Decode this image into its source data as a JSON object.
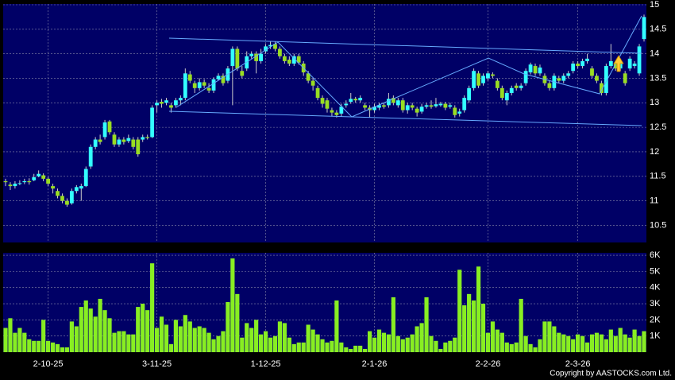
{
  "chart_data": [
    {
      "type": "candlestick",
      "up_color": "#33ffff",
      "down_color": "#99dd22",
      "grid": true,
      "ylim": [
        10.15,
        15
      ],
      "yticks": [
        10.5,
        11,
        11.5,
        12,
        12.5,
        13,
        13.5,
        14,
        14.5,
        15
      ],
      "categories": [
        null,
        null,
        null,
        null,
        null,
        null,
        null,
        null,
        null,
        "2-10-25",
        null,
        null,
        null,
        null,
        null,
        null,
        null,
        null,
        null,
        null,
        null,
        null,
        null,
        null,
        null,
        null,
        null,
        null,
        null,
        null,
        null,
        null,
        "3-11-25",
        null,
        null,
        null,
        null,
        null,
        null,
        null,
        null,
        null,
        null,
        null,
        null,
        null,
        null,
        null,
        null,
        null,
        null,
        null,
        null,
        null,
        null,
        "1-12-25",
        null,
        null,
        null,
        null,
        null,
        null,
        null,
        null,
        null,
        null,
        null,
        null,
        null,
        null,
        null,
        null,
        null,
        null,
        null,
        null,
        null,
        null,
        "2-1-26",
        null,
        null,
        null,
        null,
        null,
        null,
        null,
        null,
        null,
        null,
        null,
        null,
        null,
        null,
        null,
        null,
        null,
        null,
        null,
        null,
        null,
        null,
        null,
        "2-2-26",
        null,
        null,
        null,
        null,
        null,
        null,
        null,
        null,
        null,
        null,
        null,
        null,
        null,
        null,
        null,
        null,
        null,
        null,
        "2-3-26",
        null,
        null,
        null,
        null,
        null,
        null,
        null,
        null,
        null,
        null,
        null,
        null,
        null,
        null
      ],
      "open": [
        11.4,
        11.33,
        11.3,
        11.35,
        11.38,
        11.4,
        11.42,
        11.5,
        11.52,
        11.45,
        11.3,
        11.2,
        11.1,
        11.0,
        10.95,
        11.2,
        11.25,
        11.3,
        11.7,
        12.1,
        12.25,
        12.3,
        12.62,
        12.35,
        12.15,
        12.25,
        12.22,
        12.25,
        12.25,
        12.25,
        12.3,
        12.3,
        12.95,
        13.02,
        13.0,
        12.95,
        12.95,
        13.05,
        13.1,
        13.58,
        13.4,
        13.3,
        13.42,
        13.3,
        13.25,
        13.48,
        13.55,
        13.45,
        13.75,
        14.1,
        13.65,
        13.7,
        13.95,
        14.0,
        13.85,
        14.05,
        14.15,
        14.2,
        14.1,
        13.95,
        13.88,
        13.8,
        13.95,
        13.8,
        13.6,
        13.45,
        13.3,
        13.1,
        13.05,
        12.85,
        12.8,
        12.78,
        12.95,
        13.02,
        13.08,
        13.05,
        12.95,
        12.9,
        12.85,
        12.9,
        12.95,
        12.95,
        13.1,
        12.95,
        13.05,
        12.85,
        12.95,
        12.88,
        12.82,
        12.92,
        12.95,
        12.93,
        12.95,
        12.98,
        12.92,
        12.9,
        12.78,
        12.85,
        13.05,
        13.3,
        13.6,
        13.4,
        13.5,
        13.58,
        13.45,
        13.3,
        13.05,
        13.2,
        13.35,
        13.3,
        13.4,
        13.62,
        13.75,
        13.6,
        13.55,
        13.4,
        13.3,
        13.5,
        13.45,
        13.55,
        13.65,
        13.8,
        13.75,
        13.85,
        13.7,
        13.55,
        13.4,
        13.2,
        13.75,
        13.8,
        13.7,
        13.6,
        13.7,
        13.75,
        13.6,
        14.3
      ],
      "high": [
        11.45,
        11.38,
        11.4,
        11.42,
        11.45,
        11.46,
        11.55,
        11.62,
        11.56,
        11.48,
        11.35,
        11.25,
        11.15,
        11.05,
        11.25,
        11.32,
        11.35,
        11.7,
        12.15,
        12.3,
        12.35,
        12.65,
        12.65,
        12.4,
        12.3,
        12.3,
        12.35,
        12.3,
        12.3,
        12.35,
        12.35,
        12.95,
        13.05,
        13.08,
        13.1,
        13.0,
        13.1,
        13.15,
        13.7,
        13.65,
        13.45,
        13.5,
        13.48,
        13.4,
        13.52,
        13.6,
        13.6,
        13.75,
        14.15,
        14.15,
        13.75,
        14.05,
        14.05,
        14.05,
        14.1,
        14.2,
        14.25,
        14.25,
        14.15,
        14.0,
        13.95,
        14.0,
        14.0,
        13.85,
        13.65,
        13.5,
        13.35,
        13.15,
        13.1,
        12.9,
        12.85,
        12.98,
        13.05,
        13.2,
        13.12,
        13.15,
        13.0,
        12.95,
        12.98,
        13.0,
        13.0,
        13.2,
        13.15,
        13.1,
        13.1,
        13.0,
        13.0,
        12.92,
        12.98,
        13.0,
        13.05,
        13.1,
        13.02,
        13.02,
        13.0,
        12.95,
        12.88,
        13.15,
        13.35,
        13.7,
        13.65,
        13.6,
        13.65,
        13.62,
        13.5,
        13.35,
        13.25,
        13.35,
        13.4,
        13.4,
        13.7,
        13.82,
        13.8,
        13.78,
        13.6,
        13.45,
        13.6,
        13.55,
        13.6,
        13.65,
        13.85,
        13.85,
        13.9,
        14.0,
        13.75,
        13.6,
        13.45,
        13.8,
        14.2,
        13.85,
        13.9,
        13.65,
        13.95,
        13.85,
        14.2,
        14.8
      ],
      "low": [
        11.3,
        11.22,
        11.25,
        11.32,
        11.34,
        11.33,
        11.4,
        11.48,
        11.4,
        11.3,
        11.15,
        11.05,
        10.95,
        10.88,
        10.92,
        11.15,
        11.0,
        11.28,
        11.65,
        12.05,
        12.15,
        12.25,
        12.35,
        12.1,
        12.1,
        12.15,
        12.18,
        12.05,
        11.9,
        12.2,
        12.25,
        12.28,
        12.8,
        12.9,
        12.95,
        12.8,
        12.9,
        12.95,
        13.05,
        13.4,
        13.2,
        13.25,
        13.3,
        13.2,
        13.2,
        13.45,
        13.35,
        13.4,
        12.95,
        13.65,
        13.5,
        13.65,
        13.9,
        13.6,
        13.8,
        14.0,
        14.1,
        14.05,
        13.9,
        13.8,
        13.75,
        13.75,
        13.78,
        13.55,
        13.4,
        13.25,
        13.05,
        12.9,
        12.8,
        12.72,
        12.7,
        12.72,
        12.9,
        12.98,
        13.0,
        13.0,
        12.85,
        12.7,
        12.8,
        12.85,
        12.88,
        12.9,
        12.95,
        12.9,
        12.8,
        12.78,
        12.85,
        12.72,
        12.78,
        12.88,
        12.88,
        12.9,
        12.92,
        12.85,
        12.88,
        12.7,
        12.72,
        12.8,
        13.0,
        13.25,
        13.3,
        13.35,
        13.45,
        13.5,
        13.25,
        13.05,
        12.95,
        13.15,
        13.25,
        13.25,
        13.35,
        13.58,
        13.55,
        13.55,
        13.35,
        13.25,
        13.25,
        13.4,
        13.4,
        13.5,
        13.6,
        13.7,
        13.7,
        13.8,
        13.5,
        13.4,
        13.15,
        13.15,
        13.7,
        13.65,
        13.65,
        13.35,
        13.65,
        13.7,
        13.55,
        14.25
      ],
      "close": [
        11.38,
        11.3,
        11.35,
        11.36,
        11.4,
        11.38,
        11.48,
        11.55,
        11.45,
        11.35,
        11.25,
        11.1,
        11.0,
        10.92,
        11.2,
        11.28,
        11.3,
        11.65,
        12.1,
        12.25,
        12.2,
        12.6,
        12.4,
        12.15,
        12.25,
        12.2,
        12.28,
        12.1,
        11.95,
        12.3,
        12.28,
        12.9,
        13.0,
        12.98,
        13.05,
        12.9,
        13.05,
        13.1,
        13.6,
        13.45,
        13.3,
        13.42,
        13.35,
        13.25,
        13.48,
        13.55,
        13.4,
        13.7,
        14.1,
        13.7,
        13.55,
        13.95,
        14.0,
        13.85,
        14.0,
        14.15,
        14.18,
        14.1,
        13.95,
        13.85,
        13.8,
        13.95,
        13.82,
        13.62,
        13.45,
        13.35,
        13.1,
        12.98,
        12.88,
        12.8,
        12.75,
        12.92,
        12.98,
        13.08,
        13.05,
        13.1,
        12.9,
        12.85,
        12.92,
        12.95,
        12.92,
        13.08,
        13.0,
        13.05,
        12.85,
        12.95,
        12.9,
        12.8,
        12.92,
        12.95,
        12.92,
        12.97,
        12.98,
        12.9,
        12.95,
        12.75,
        12.82,
        13.1,
        13.3,
        13.65,
        13.35,
        13.55,
        13.6,
        13.55,
        13.3,
        13.1,
        13.2,
        13.3,
        13.3,
        13.35,
        13.65,
        13.78,
        13.6,
        13.72,
        13.4,
        13.3,
        13.55,
        13.45,
        13.55,
        13.6,
        13.8,
        13.75,
        13.85,
        13.9,
        13.55,
        13.45,
        13.2,
        13.75,
        13.85,
        13.7,
        13.85,
        13.4,
        13.9,
        13.8,
        14.15,
        14.75
      ]
    },
    {
      "type": "bar",
      "color": "#88ee22",
      "grid": true,
      "ylim": [
        0,
        6150
      ],
      "yticks": [
        {
          "value": 1000,
          "label": "1K"
        },
        {
          "value": 2000,
          "label": "2K"
        },
        {
          "value": 3000,
          "label": "3K"
        },
        {
          "value": 4000,
          "label": "4K"
        },
        {
          "value": 5000,
          "label": "5K"
        },
        {
          "value": 6000,
          "label": "6K"
        }
      ],
      "values": [
        1500,
        2100,
        1200,
        1500,
        1200,
        800,
        700,
        700,
        2000,
        700,
        600,
        500,
        300,
        300,
        1900,
        1600,
        2800,
        3200,
        2700,
        2200,
        3300,
        2600,
        2100,
        1200,
        1300,
        1300,
        1100,
        1100,
        2800,
        3000,
        2600,
        5500,
        1500,
        2200,
        1700,
        500,
        2000,
        1600,
        2300,
        1900,
        1500,
        1600,
        1500,
        1200,
        800,
        1000,
        1300,
        3100,
        5800,
        3600,
        900,
        1800,
        1500,
        2000,
        1100,
        1300,
        900,
        1000,
        1900,
        1800,
        900,
        500,
        600,
        600,
        1700,
        1400,
        1100,
        800,
        600,
        700,
        3200,
        600,
        300,
        200,
        400,
        400,
        200,
        1300,
        900,
        1400,
        1200,
        1100,
        3400,
        1000,
        800,
        900,
        1100,
        1600,
        1800,
        3400,
        1000,
        700,
        200,
        600,
        700,
        900,
        5100,
        2900,
        3600,
        3200,
        5300,
        3000,
        1200,
        1900,
        1400,
        1200,
        600,
        500,
        600,
        3300,
        1000,
        500,
        300,
        800,
        1900,
        1900,
        1600,
        1200,
        1100,
        1000,
        800,
        1100,
        1000,
        600,
        1100,
        1200,
        1100,
        800,
        1400,
        1000,
        1500,
        1100,
        900,
        1400,
        1000,
        1300
      ]
    }
  ],
  "copyright": "Copyright by AASTOCKS.com Ltd."
}
